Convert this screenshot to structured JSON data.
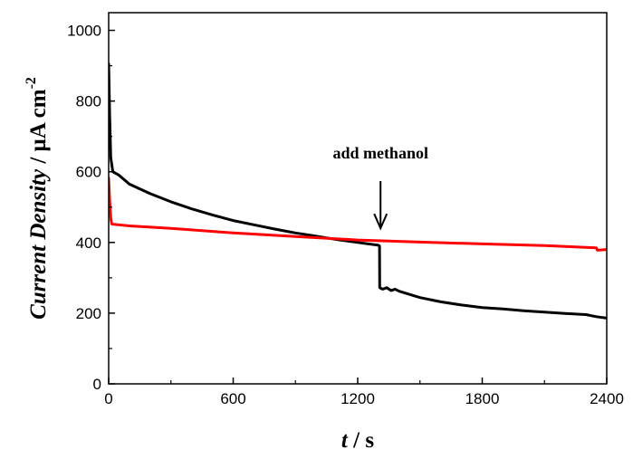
{
  "chart_data": {
    "type": "line",
    "xlabel": {
      "italic": "t",
      "rest": " / s"
    },
    "ylabel": {
      "italic": "Current Density",
      "rest": " / μA cm",
      "sup": "-2"
    },
    "xlim": [
      0,
      2400
    ],
    "ylim": [
      0,
      1050
    ],
    "x_ticks": [
      0,
      600,
      1200,
      1800,
      2400
    ],
    "y_ticks": [
      0,
      200,
      400,
      600,
      800,
      1000
    ],
    "x_minor_ticks": [
      300,
      900,
      1500,
      2100
    ],
    "y_minor_ticks": [
      100,
      300,
      500,
      700,
      900
    ],
    "grid": false,
    "legend": "none",
    "annotation": {
      "text": "add methanol",
      "x": 1310,
      "y_arrow_tip": 440
    },
    "series": [
      {
        "color": "#000000",
        "points": [
          [
            0,
            905
          ],
          [
            5,
            760
          ],
          [
            10,
            640
          ],
          [
            20,
            600
          ],
          [
            50,
            590
          ],
          [
            100,
            565
          ],
          [
            200,
            538
          ],
          [
            300,
            515
          ],
          [
            400,
            495
          ],
          [
            500,
            478
          ],
          [
            600,
            462
          ],
          [
            700,
            450
          ],
          [
            800,
            438
          ],
          [
            900,
            427
          ],
          [
            1000,
            418
          ],
          [
            1100,
            408
          ],
          [
            1200,
            400
          ],
          [
            1300,
            392
          ],
          [
            1305,
            390
          ],
          [
            1306,
            272
          ],
          [
            1320,
            268
          ],
          [
            1340,
            272
          ],
          [
            1360,
            264
          ],
          [
            1380,
            268
          ],
          [
            1400,
            262
          ],
          [
            1500,
            244
          ],
          [
            1600,
            232
          ],
          [
            1700,
            223
          ],
          [
            1800,
            216
          ],
          [
            1900,
            212
          ],
          [
            2000,
            207
          ],
          [
            2100,
            203
          ],
          [
            2200,
            199
          ],
          [
            2300,
            196
          ],
          [
            2350,
            190
          ],
          [
            2400,
            186
          ]
        ]
      },
      {
        "color": "#ff0000",
        "points": [
          [
            0,
            582
          ],
          [
            5,
            520
          ],
          [
            10,
            470
          ],
          [
            15,
            452
          ],
          [
            100,
            447
          ],
          [
            300,
            440
          ],
          [
            600,
            427
          ],
          [
            900,
            417
          ],
          [
            1200,
            407
          ],
          [
            1500,
            401
          ],
          [
            1800,
            396
          ],
          [
            2100,
            391
          ],
          [
            2350,
            385
          ],
          [
            2355,
            378
          ],
          [
            2400,
            380
          ]
        ]
      }
    ]
  }
}
